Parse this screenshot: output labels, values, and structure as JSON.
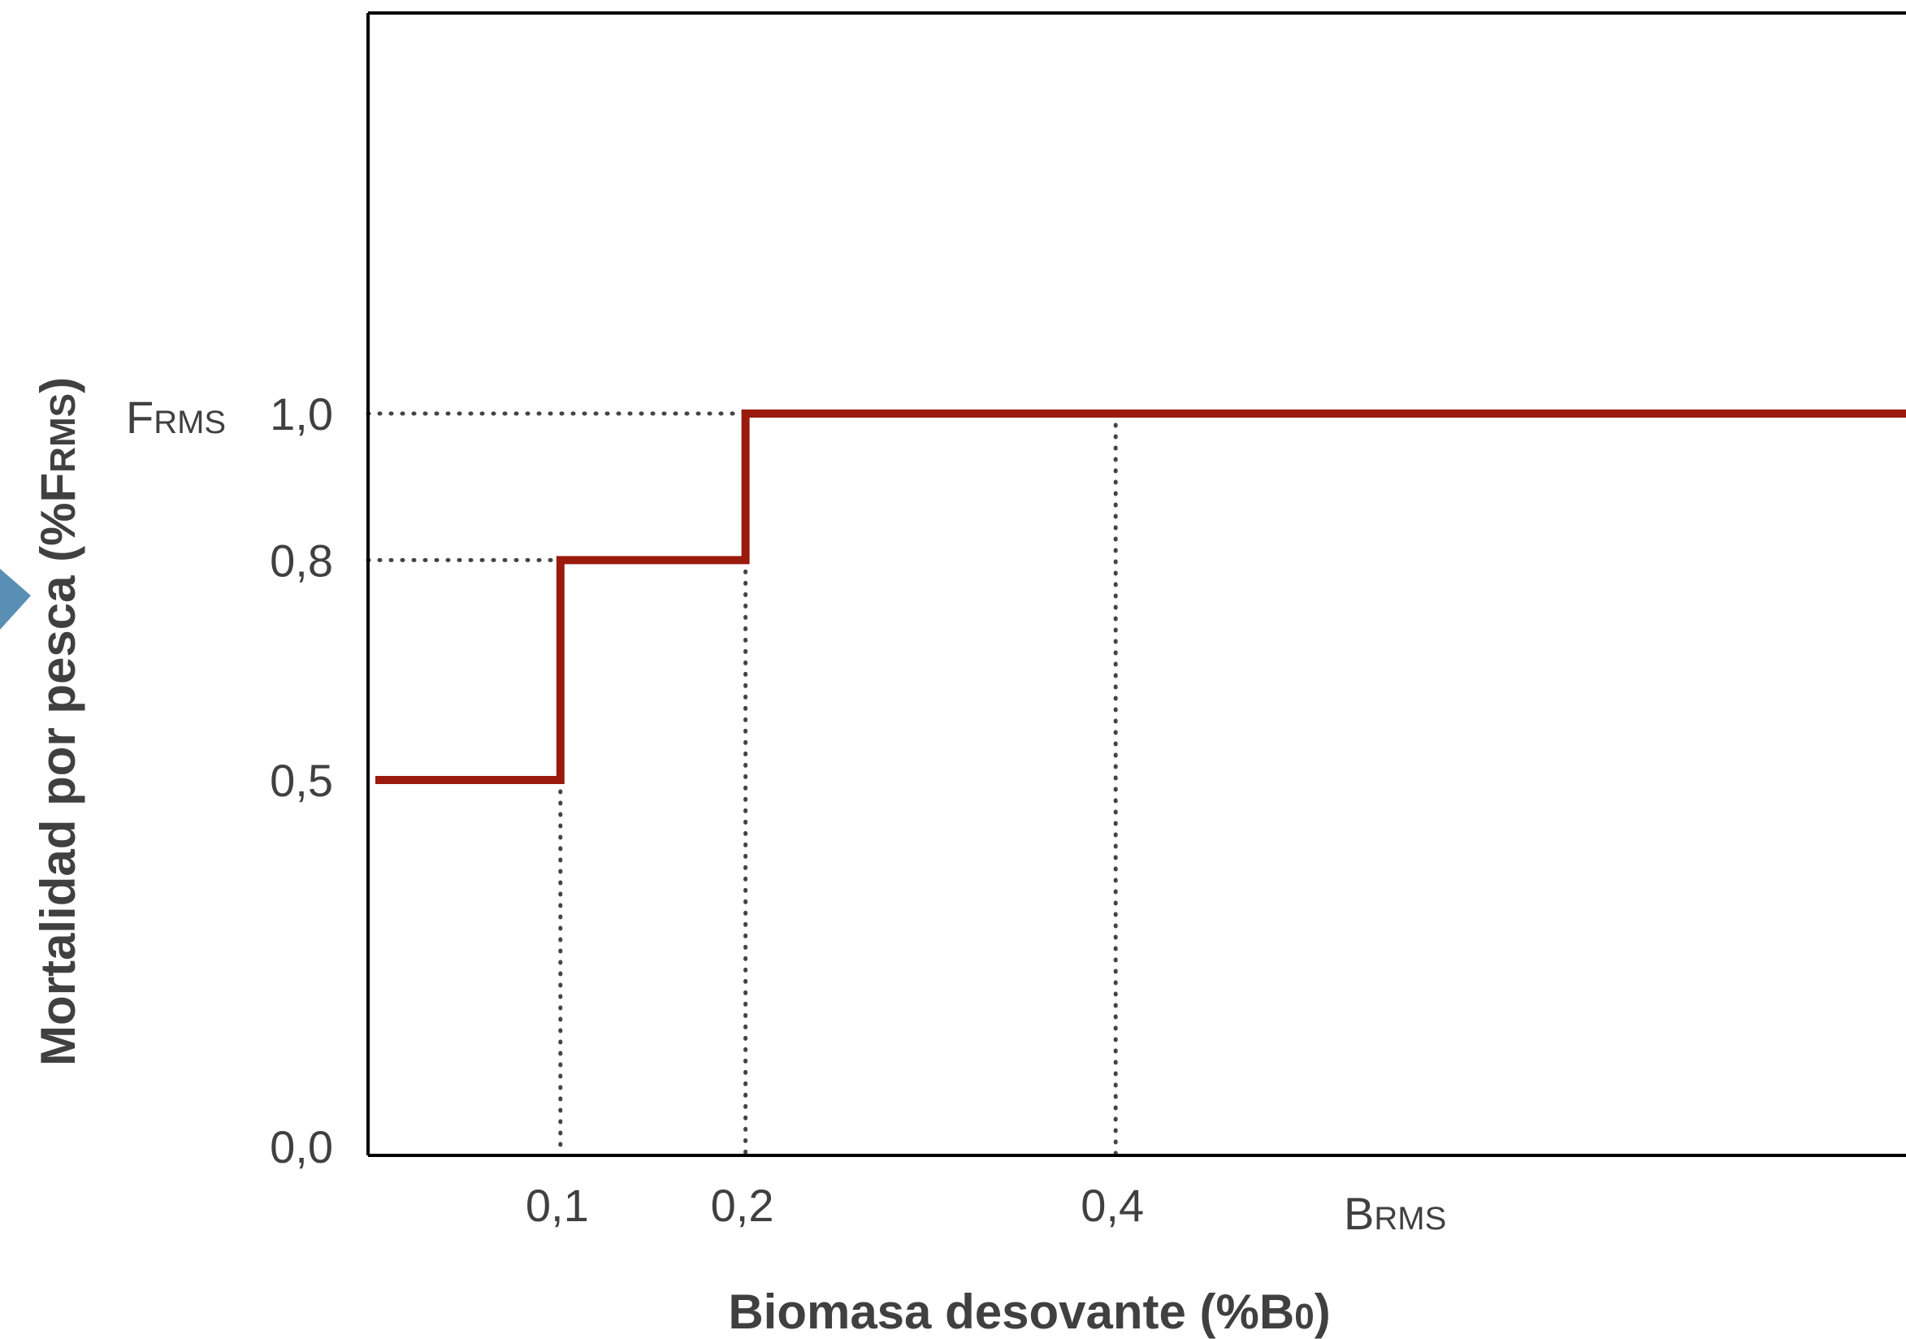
{
  "chart_data": {
    "type": "line",
    "step": true,
    "xlabel": {
      "main": "Biomasa desovante (%B",
      "sub": "0",
      "close": ")"
    },
    "ylabel": {
      "main": "Mortalidad por pesca (%F",
      "sub": "RMS",
      "close": ")"
    },
    "xlim": [
      0,
      1
    ],
    "ylim": [
      -0.02,
      1.55
    ],
    "grid": false,
    "x_ticks": [
      {
        "value": 0.1,
        "label": "0,1"
      },
      {
        "value": 0.2,
        "label": "0,2"
      },
      {
        "value": 0.4,
        "label": "0,4"
      }
    ],
    "y_ticks": [
      {
        "value": 0.0,
        "label": "0,0"
      },
      {
        "value": 0.5,
        "label": "0,5"
      },
      {
        "value": 0.8,
        "label": "0,8"
      },
      {
        "value": 1.0,
        "label": "1,0"
      }
    ],
    "x_reference": {
      "value": 0.4,
      "main": "B",
      "sub": "RMS"
    },
    "y_reference": {
      "value": 1.0,
      "main": "F",
      "sub": "RMS"
    },
    "series": [
      {
        "color": "#9b1a0e",
        "x": [
          0.0,
          0.1,
          0.1,
          0.2,
          0.2,
          1.0
        ],
        "y": [
          0.5,
          0.5,
          0.8,
          0.8,
          1.0,
          1.0
        ]
      }
    ],
    "guides": [
      {
        "from": [
          0.0,
          1.0
        ],
        "to": [
          0.2,
          1.0
        ]
      },
      {
        "from": [
          0.0,
          0.8
        ],
        "to": [
          0.1,
          0.8
        ]
      },
      {
        "from": [
          0.1,
          0.5
        ],
        "to": [
          0.1,
          0.0
        ]
      },
      {
        "from": [
          0.2,
          0.8
        ],
        "to": [
          0.2,
          0.0
        ]
      },
      {
        "from": [
          0.4,
          1.0
        ],
        "to": [
          0.4,
          0.0
        ]
      }
    ]
  }
}
